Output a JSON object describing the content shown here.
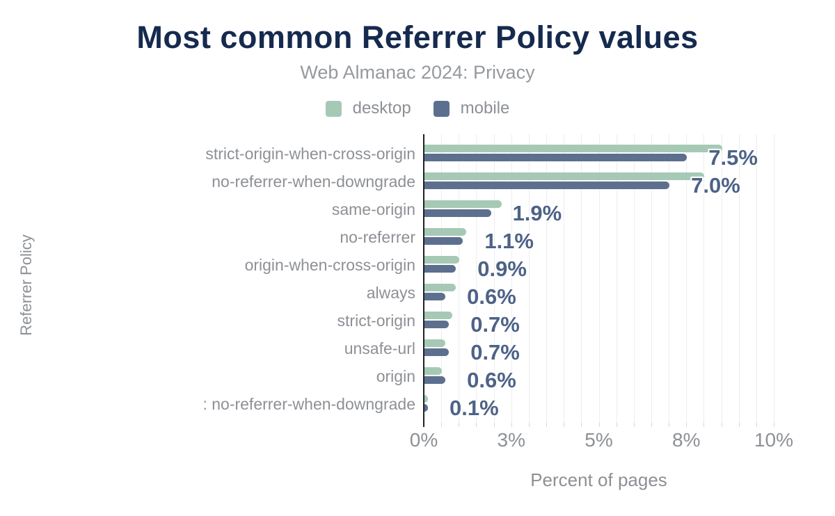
{
  "chart_data": {
    "type": "bar",
    "orientation": "horizontal",
    "title": "Most common Referrer Policy values",
    "subtitle": "Web Almanac 2024: Privacy",
    "xlabel": "Percent of pages",
    "ylabel": "Referrer Policy",
    "categories": [
      "strict-origin-when-cross-origin",
      "no-referrer-when-downgrade",
      "same-origin",
      "no-referrer",
      "origin-when-cross-origin",
      "always",
      "strict-origin",
      "unsafe-url",
      "origin",
      ": no-referrer-when-downgrade"
    ],
    "series": [
      {
        "name": "desktop",
        "color": "#a5c9b5",
        "values": [
          8.5,
          8.0,
          2.2,
          1.2,
          1.0,
          0.9,
          0.8,
          0.6,
          0.5,
          0.1
        ]
      },
      {
        "name": "mobile",
        "color": "#5d6f8e",
        "values": [
          7.5,
          7.0,
          1.9,
          1.1,
          0.9,
          0.6,
          0.7,
          0.7,
          0.6,
          0.1
        ]
      }
    ],
    "value_labels": [
      "7.5%",
      "7.0%",
      "1.9%",
      "1.1%",
      "0.9%",
      "0.6%",
      "0.7%",
      "0.7%",
      "0.6%",
      "0.1%"
    ],
    "value_label_series": "mobile",
    "xlim": [
      0,
      10.5
    ],
    "x_ticks": [
      {
        "value": 0,
        "label": "0%"
      },
      {
        "value": 2.5,
        "label": "3%"
      },
      {
        "value": 5,
        "label": "5%"
      },
      {
        "value": 7.5,
        "label": "8%"
      },
      {
        "value": 10,
        "label": "10%"
      }
    ],
    "grid": true,
    "grid_step": 0.5,
    "legend_position": "top",
    "colors": {
      "title": "#152a4e",
      "subtitle": "#96999e",
      "muted_text": "#8d9095",
      "value_label": "#4d6287",
      "axis_line": "#202124",
      "gridline": "#ededed",
      "tick_mark": "#d6d6d6",
      "background": "#ffffff"
    }
  }
}
